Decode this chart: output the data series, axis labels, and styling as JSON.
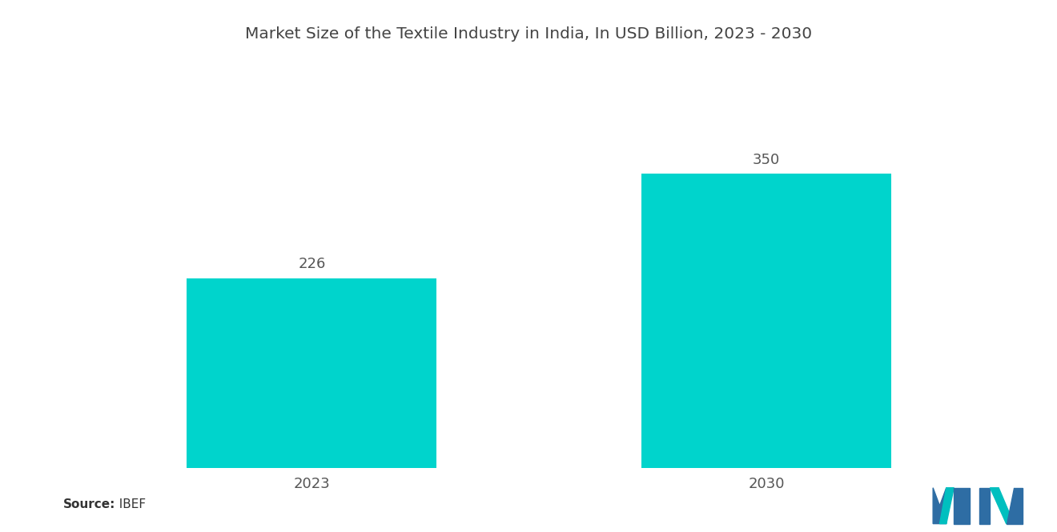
{
  "title": "Market Size of the Textile Industry in India, In USD Billion, 2023 - 2030",
  "categories": [
    "2023",
    "2030"
  ],
  "values": [
    226,
    350
  ],
  "bar_color": "#00D4CC",
  "background_color": "#ffffff",
  "title_fontsize": 14.5,
  "label_fontsize": 13,
  "tick_fontsize": 13,
  "source_label": "Source:",
  "source_value": "  IBEF",
  "ylim": [
    0,
    430
  ],
  "bar_positions": [
    1,
    3
  ],
  "bar_width": 1.1,
  "xlim": [
    0,
    4
  ]
}
